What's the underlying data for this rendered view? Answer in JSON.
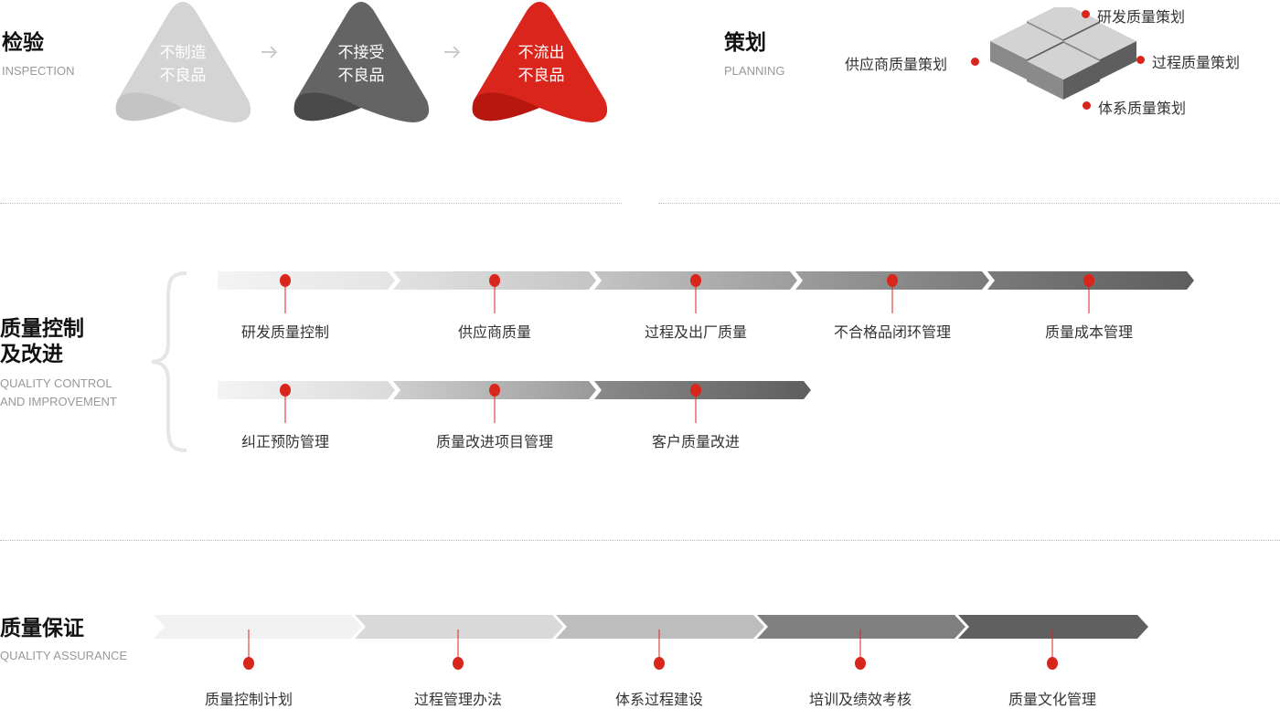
{
  "inspection": {
    "title": "检验",
    "subtitle": "INSPECTION",
    "steps": [
      {
        "line1": "不制造",
        "line2": "不良品",
        "color": "#d4d4d4",
        "shade": "#c4c4c4"
      },
      {
        "line1": "不接受",
        "line2": "不良品",
        "color": "#646464",
        "shade": "#4a4a4a"
      },
      {
        "line1": "不流出",
        "line2": "不良品",
        "color": "#da251d",
        "shade": "#b8170f"
      }
    ],
    "arrow": "arrow-right-icon"
  },
  "planning": {
    "title": "策划",
    "subtitle": "PLANNING",
    "items": [
      "研发质量策划",
      "供应商质量策划",
      "过程质量策划",
      "体系质量策划"
    ]
  },
  "control": {
    "title_line1": "质量控制",
    "title_line2": "及改进",
    "subtitle_line1": "QUALITY CONTROL",
    "subtitle_line2": "AND IMPROVEMENT",
    "row1": [
      "研发质量控制",
      "供应商质量",
      "过程及出厂质量",
      "不合格品闭环管理",
      "质量成本管理"
    ],
    "row2": [
      "纠正预防管理",
      "质量改进项目管理",
      "客户质量改进"
    ]
  },
  "assurance": {
    "title": "质量保证",
    "subtitle": "QUALITY ASSURANCE",
    "items": [
      "质量控制计划",
      "过程管理办法",
      "体系过程建设",
      "培训及绩效考核",
      "质量文化管理"
    ],
    "colors": [
      "#f2f2f2",
      "#d9d9d9",
      "#bdbdbd",
      "#808080",
      "#606060"
    ]
  },
  "accent": "#d9261c"
}
